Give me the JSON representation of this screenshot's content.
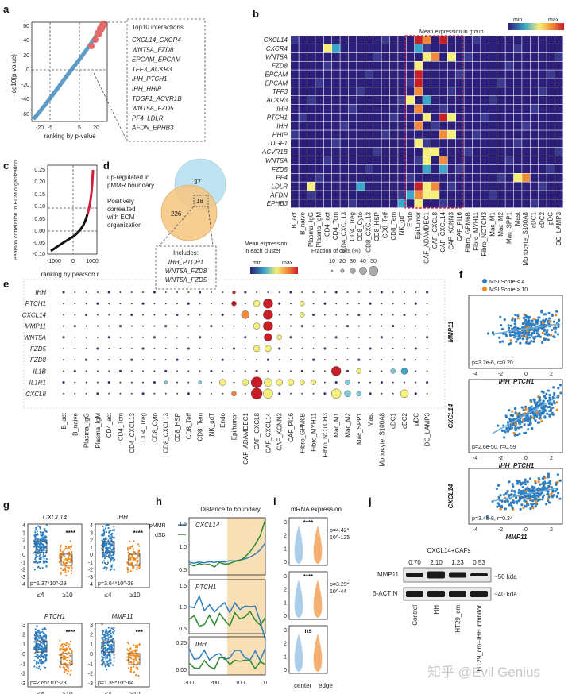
{
  "colors": {
    "red_label": "#c0204a",
    "blue_label": "#2a9db5",
    "brown_label": "#9a6a2a",
    "orange": "#f08a1e",
    "blue": "#2f7ec0",
    "green": "#2a8a2a",
    "heat": [
      "#2b1f7a",
      "#3aa6c9",
      "#f6ef7a",
      "#f38a3a",
      "#c81e28"
    ]
  },
  "panel_letters": [
    "a",
    "b",
    "c",
    "d",
    "e",
    "f",
    "g",
    "h",
    "i",
    "j"
  ],
  "panel_a": {
    "ylabel": "-log10(p-value)",
    "xlabel": "ranking by p-value",
    "yticks": [
      "60",
      "40",
      "20",
      "0",
      "-20",
      "-40",
      "-60"
    ],
    "xticks": [
      "-20",
      "-5",
      "5",
      "20"
    ],
    "box_title": "Top10 interactions",
    "interactions": [
      {
        "text": "CXCL14_CXCR4",
        "color": "dark"
      },
      {
        "text": "WNT5A_FZD8",
        "color": "red"
      },
      {
        "text": "EPCAM_EPCAM",
        "color": "dark"
      },
      {
        "text": "TFF3_ACKR3",
        "color": "dark"
      },
      {
        "text": "IHH_PTCH1",
        "color": "red"
      },
      {
        "text": "IHH_HHIP",
        "color": "dark"
      },
      {
        "text": "TDGF1_ACVR1B",
        "color": "dark"
      },
      {
        "text": "WNT5A_FZD5",
        "color": "red"
      },
      {
        "text": "PF4_LDLR",
        "color": "dark"
      },
      {
        "text": "AFDN_EPHB3",
        "color": "dark"
      }
    ]
  },
  "panel_b": {
    "legend_title": "Mean expression in group",
    "legend_min": "min",
    "legend_max": "max",
    "genes": [
      {
        "name": "CXCL14",
        "color": "brown"
      },
      {
        "name": "CXCR4",
        "color": "blue"
      },
      {
        "name": "WNT5A",
        "color": "brown"
      },
      {
        "name": "FZD8",
        "color": "blue"
      },
      {
        "name": "EPCAM",
        "color": "brown"
      },
      {
        "name": "EPCAM",
        "color": "blue"
      },
      {
        "name": "TFF3",
        "color": "brown"
      },
      {
        "name": "ACKR3",
        "color": "blue"
      },
      {
        "name": "IHH",
        "color": "brown"
      },
      {
        "name": "PTCH1",
        "color": "blue"
      },
      {
        "name": "IHH",
        "color": "brown"
      },
      {
        "name": "HHIP",
        "color": "blue"
      },
      {
        "name": "TDGF1",
        "color": "brown"
      },
      {
        "name": "ACVR1B",
        "color": "blue"
      },
      {
        "name": "WNT5A",
        "color": "brown"
      },
      {
        "name": "FZD5",
        "color": "blue"
      },
      {
        "name": "PF4",
        "color": "brown"
      },
      {
        "name": "LDLR",
        "color": "blue"
      },
      {
        "name": "AFDN",
        "color": "brown"
      },
      {
        "name": "EPHB3",
        "color": "blue"
      }
    ],
    "cells": [
      {
        "name": "B_act",
        "red": false
      },
      {
        "name": "B_naive",
        "red": false
      },
      {
        "name": "Plasma_IgG",
        "red": false
      },
      {
        "name": "Plasma_IgM",
        "red": false
      },
      {
        "name": "CD4_act",
        "red": false
      },
      {
        "name": "CD4_Tcm",
        "red": false
      },
      {
        "name": "CD4_CXCL13",
        "red": false
      },
      {
        "name": "CD4_Treg",
        "red": false
      },
      {
        "name": "CD8_Cyto",
        "red": false
      },
      {
        "name": "CD8_CXCL13",
        "red": false
      },
      {
        "name": "CD8_HSP",
        "red": false
      },
      {
        "name": "CD8_Teff",
        "red": false
      },
      {
        "name": "CD8_Tem",
        "red": false
      },
      {
        "name": "NK_gdT",
        "red": false
      },
      {
        "name": "Endo",
        "red": false
      },
      {
        "name": "Epi/tumor",
        "red": true
      },
      {
        "name": "CAF_ADAMDEC1",
        "red": true
      },
      {
        "name": "CAF_CXCL8",
        "red": true
      },
      {
        "name": "CAF_CXCL14",
        "red": true
      },
      {
        "name": "CAF_KCNN3",
        "red": true
      },
      {
        "name": "CAF_PI16",
        "red": true
      },
      {
        "name": "Fibro_GPM6B",
        "red": false
      },
      {
        "name": "Fibro_MYH11",
        "red": false
      },
      {
        "name": "Fibro_NOTCH3",
        "red": false
      },
      {
        "name": "Mac_M1",
        "red": false
      },
      {
        "name": "Mac_M2",
        "red": false
      },
      {
        "name": "Mac_SPP1",
        "red": false
      },
      {
        "name": "Mast",
        "red": false
      },
      {
        "name": "Monocyte_S100A8",
        "red": false
      },
      {
        "name": "cDC1",
        "red": false
      },
      {
        "name": "cDC2",
        "red": false
      },
      {
        "name": "pDC",
        "red": false
      },
      {
        "name": "DC_LAMP3",
        "red": false
      }
    ]
  },
  "panel_c": {
    "ylabel": "Pearson correlation to ECM organization",
    "xlabel": "ranking by pearson r",
    "yticks": [
      "0.25",
      "0.20",
      "0.15",
      "0.10",
      "0.05",
      "0.00",
      "-0.05",
      "-0.10"
    ],
    "xticks": [
      "-1000",
      "0",
      "1000"
    ]
  },
  "panel_d": {
    "up_label": "up-regulated in pMMR boundary",
    "pos_label": "Positively correalted with ECM organization",
    "n_up": "37",
    "n_pos": "226",
    "n_both": "18",
    "includes_title": "Includes:",
    "includes": [
      "IHH_PTCH1",
      "WNT5A_FZD8",
      "WNT5A_FZD5"
    ]
  },
  "panel_e": {
    "legend_title": "Mean expression in each cluster",
    "legend_min": "min",
    "legend_max": "max",
    "size_title": "Fraction of cells (%)",
    "size_labels": [
      "10",
      "20",
      "30",
      "40",
      "50"
    ],
    "genes": [
      {
        "name": "IHH",
        "color": "blue"
      },
      {
        "name": "PTCH1",
        "color": "blue"
      },
      {
        "name": "CXCL14",
        "color": "blue"
      },
      {
        "name": "MMP11",
        "color": "blue"
      },
      {
        "name": "WNT5A",
        "color": "blue"
      },
      {
        "name": "FZD5",
        "color": "blue"
      },
      {
        "name": "FZD8",
        "color": "blue"
      },
      {
        "name": "IL1B",
        "color": "orange"
      },
      {
        "name": "IL1R1",
        "color": "orange"
      },
      {
        "name": "CXCL8",
        "color": "orange"
      }
    ],
    "cells": [
      {
        "name": "B_act",
        "red": false
      },
      {
        "name": "B_naive",
        "red": false
      },
      {
        "name": "Plasma_IgG",
        "red": false
      },
      {
        "name": "Plasma_IgM",
        "red": false
      },
      {
        "name": "CD4_act",
        "red": false
      },
      {
        "name": "CD4_Tcm",
        "red": false
      },
      {
        "name": "CD4_CXCL13",
        "red": false
      },
      {
        "name": "CD4_Treg",
        "red": false
      },
      {
        "name": "CD8_Cyto",
        "red": false
      },
      {
        "name": "CD8_CXCL13",
        "red": false
      },
      {
        "name": "CD8_HSP",
        "red": false
      },
      {
        "name": "CD8_Teff",
        "red": false
      },
      {
        "name": "CD8_Tem",
        "red": false
      },
      {
        "name": "NK_gdT",
        "red": false
      },
      {
        "name": "Endo",
        "red": false
      },
      {
        "name": "Epi/tumor",
        "red": true
      },
      {
        "name": "CAF_ADAMDEC1",
        "red": false
      },
      {
        "name": "CAF_CXCL8",
        "red": true
      },
      {
        "name": "CAF_CXCL14",
        "red": true
      },
      {
        "name": "CAF_KCNN3",
        "red": false
      },
      {
        "name": "CAF_PI16",
        "red": false
      },
      {
        "name": "Fibro_GPM6B",
        "red": false
      },
      {
        "name": "Fibro_MYH11",
        "red": false
      },
      {
        "name": "Fibro_NOTCH3",
        "red": false
      },
      {
        "name": "Mac_M1",
        "red": true
      },
      {
        "name": "Mac_M2",
        "red": false
      },
      {
        "name": "Mac_SPP1",
        "red": false
      },
      {
        "name": "Mast",
        "red": false
      },
      {
        "name": "Monocyte_S100A8",
        "red": false
      },
      {
        "name": "cDC1",
        "red": false
      },
      {
        "name": "cDC2",
        "red": false
      },
      {
        "name": "pDC",
        "red": false
      },
      {
        "name": "DC_LAMP3",
        "red": false
      }
    ]
  },
  "panel_f": {
    "legend": [
      "MSI Score ≤ 4",
      "MSI Score ≥ 10"
    ],
    "plots": [
      {
        "ylabel": "MMP11",
        "xlabel": "IHH_PTCH1",
        "stat": "p=3.2e-6, r=0.20"
      },
      {
        "ylabel": "CXCL14",
        "xlabel": "IHH_PTCH1",
        "stat": "p=2.6e-50, r=0.59"
      },
      {
        "ylabel": "CXCL14",
        "xlabel": "MMP11",
        "stat": "p=3.4e-8, r=0.24"
      }
    ],
    "xticks": [
      "-4",
      "-2",
      "0",
      "2"
    ],
    "yticks": [
      "2",
      "1",
      "0",
      "-1",
      "-2",
      "-3",
      "-4",
      "-5"
    ]
  },
  "panel_g": {
    "plots": [
      {
        "title": "CXCL14",
        "stat": "p=1.37*10^-29",
        "sig": "****"
      },
      {
        "title": "IHH",
        "stat": "p=3.64*10^-28",
        "sig": "****"
      },
      {
        "title": "PTCH1",
        "stat": "p=2.65*10^-23",
        "sig": "****"
      },
      {
        "title": "MMP11",
        "stat": "p=1.39*10^-04",
        "sig": "***"
      }
    ],
    "groups": [
      "≤4",
      "≥10"
    ],
    "yticks_top": [
      "4",
      "3",
      "2",
      "1",
      "0",
      "-1",
      "-2",
      "-3",
      "-4"
    ],
    "yticks_bottom": [
      "3",
      "2",
      "1",
      "0",
      "-1",
      "-2",
      "-3"
    ]
  },
  "panel_h": {
    "title": "Distance to boundary",
    "legend": [
      "pMMR",
      "dSD"
    ],
    "genes": [
      "CXCL14",
      "PTCH1",
      "IHH"
    ],
    "yticks_1": [
      "1.5",
      "1.0",
      "0.5"
    ],
    "yticks_2": [
      "1.5",
      "1.0",
      "0.5"
    ],
    "yticks_3": [
      "0.25",
      "0.00"
    ],
    "xticks": [
      "300",
      "200",
      "100",
      "0"
    ],
    "series": [
      {
        "name": "CXCL14 pMMR",
        "x": [
          300,
          280,
          260,
          240,
          220,
          200,
          180,
          160,
          140,
          120,
          100,
          80,
          60,
          40,
          20,
          0
        ],
        "y": [
          0.35,
          0.33,
          0.36,
          0.34,
          0.37,
          0.35,
          0.38,
          0.36,
          0.4,
          0.39,
          0.42,
          0.45,
          0.5,
          0.58,
          0.7,
          0.9
        ]
      },
      {
        "name": "CXCL14 dSD",
        "x": [
          300,
          280,
          260,
          240,
          220,
          200,
          180,
          160,
          140,
          120,
          100,
          80,
          60,
          40,
          20,
          0
        ],
        "y": [
          0.3,
          0.25,
          0.32,
          0.28,
          0.3,
          0.22,
          0.35,
          0.3,
          0.32,
          0.38,
          0.4,
          0.5,
          0.65,
          0.85,
          1.1,
          1.55
        ]
      }
    ]
  },
  "panel_i": {
    "title": "mRNA expression",
    "stats": [
      {
        "sig": "****",
        "p": "p=4.42*",
        "exp": "10^-125"
      },
      {
        "sig": "****",
        "p": "p=3.29*",
        "exp": "10^-44"
      },
      {
        "sig": "ns",
        "p": "",
        "exp": ""
      }
    ],
    "yticks": [
      "3",
      "2",
      "1",
      "0"
    ],
    "xlabels": [
      "center",
      "edge"
    ]
  },
  "panel_j": {
    "title": "CXCL14+CAFs",
    "ratios": [
      "0.70",
      "2.10",
      "1.23",
      "0.53"
    ],
    "bands": [
      "MMP11",
      "β-ACTIN"
    ],
    "kda": [
      "~50 kda",
      "~40 kda"
    ],
    "lanes": [
      "Control",
      "IHH",
      "HT29_cm",
      "HT29_cm+IHH inhibitor"
    ]
  },
  "watermark": "知乎 @Evil Genius"
}
